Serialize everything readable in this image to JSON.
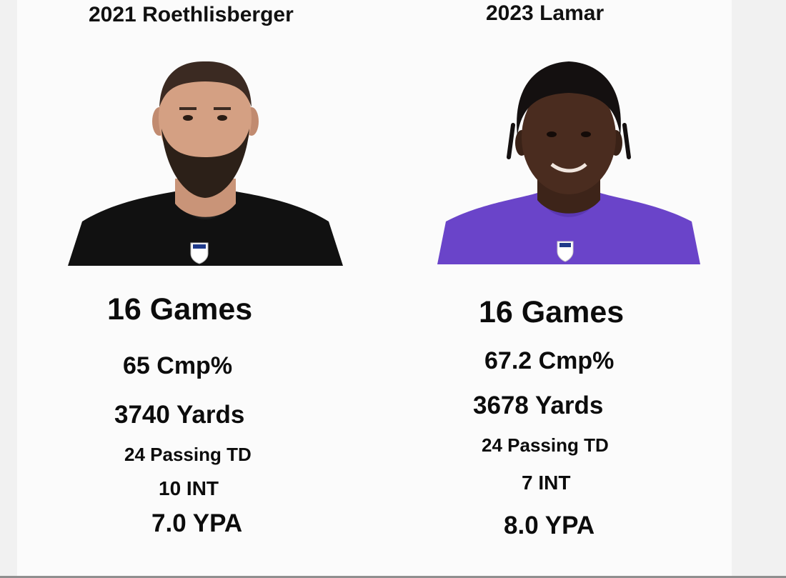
{
  "left_player": {
    "heading": "2021 Roethlisberger",
    "jersey_color": "#111111",
    "stats": {
      "games": "16 Games",
      "cmp": "65 Cmp%",
      "yards": "3740 Yards",
      "passing_td": "24 Passing TD",
      "int": "10 INT",
      "ypa": "7.0 YPA"
    }
  },
  "right_player": {
    "heading": "2023 Lamar",
    "jersey_color": "#6a44c9",
    "stats": {
      "games": "16 Games",
      "cmp": "67.2 Cmp%",
      "yards": "3678 Yards",
      "passing_td": "24 Passing TD",
      "int": "7 INT",
      "ypa": "8.0 YPA"
    }
  }
}
